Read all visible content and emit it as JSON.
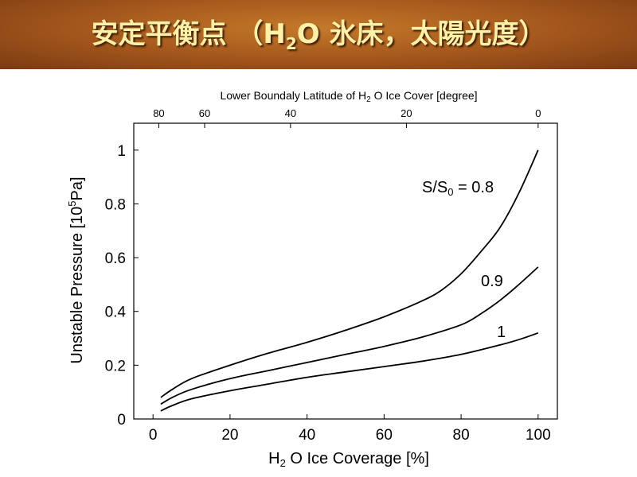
{
  "slide": {
    "title_part1": "安定平衡点 （H",
    "title_sub": "2",
    "title_part2": "O 氷床，太陽光度）",
    "colors": {
      "title_bg": "#a3561c",
      "title_text": "#fff2a8"
    }
  },
  "chart_data": {
    "type": "line",
    "xlabel_part1": "H",
    "xlabel_sub": "2",
    "xlabel_part2": " O Ice Coverage [%]",
    "ylabel_part1": "Unstable Pressure [10",
    "ylabel_sup": "5",
    "ylabel_part2": "Pa]",
    "top_xlabel_part1": "Lower Boundaly Latitude of H",
    "top_xlabel_sub": "2",
    "top_xlabel_part2": " O Ice Cover [degree]",
    "xlim": [
      -5,
      105
    ],
    "ylim": [
      0,
      1.1
    ],
    "x_ticks": [
      "0",
      "20",
      "40",
      "60",
      "80",
      "100"
    ],
    "y_ticks": [
      "0",
      "0.2",
      "0.4",
      "0.6",
      "0.8",
      "1"
    ],
    "top_ticks": [
      {
        "label": "80",
        "coverage": 1.5
      },
      {
        "label": "60",
        "coverage": 13.4
      },
      {
        "label": "40",
        "coverage": 35.7
      },
      {
        "label": "20",
        "coverage": 65.8
      },
      {
        "label": "0",
        "coverage": 100
      }
    ],
    "grid": false,
    "series": [
      {
        "label_prefix": "S/S",
        "label_sub": "0",
        "label_suffix": " = 0.8",
        "x": [
          2,
          5,
          10,
          20,
          30,
          40,
          50,
          60,
          70,
          75,
          80,
          85,
          90,
          95,
          100
        ],
        "y": [
          0.08,
          0.11,
          0.15,
          0.2,
          0.245,
          0.285,
          0.33,
          0.38,
          0.44,
          0.48,
          0.54,
          0.62,
          0.71,
          0.84,
          1.0
        ]
      },
      {
        "label_prefix": "0.9",
        "label_sub": "",
        "label_suffix": "",
        "x": [
          2,
          5,
          10,
          20,
          30,
          40,
          50,
          60,
          70,
          80,
          85,
          90,
          95,
          100
        ],
        "y": [
          0.055,
          0.08,
          0.11,
          0.15,
          0.18,
          0.21,
          0.24,
          0.27,
          0.305,
          0.35,
          0.39,
          0.44,
          0.5,
          0.565
        ]
      },
      {
        "label_prefix": "1",
        "label_sub": "",
        "label_suffix": "",
        "x": [
          2,
          5,
          10,
          20,
          30,
          40,
          50,
          60,
          70,
          80,
          90,
          95,
          100
        ],
        "y": [
          0.03,
          0.05,
          0.075,
          0.105,
          0.13,
          0.155,
          0.175,
          0.195,
          0.215,
          0.24,
          0.275,
          0.295,
          0.32
        ]
      }
    ]
  }
}
